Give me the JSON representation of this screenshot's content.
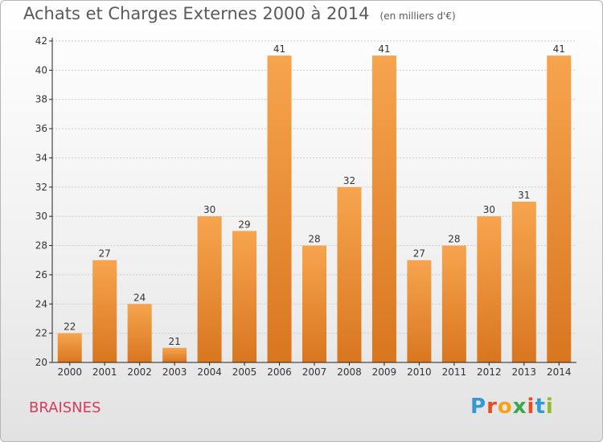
{
  "chart_data": {
    "type": "bar",
    "title": "Achats et Charges Externes 2000 à 2014",
    "subtitle": "(en milliers d'€)",
    "categories": [
      "2000",
      "2001",
      "2002",
      "2003",
      "2004",
      "2005",
      "2006",
      "2007",
      "2008",
      "2009",
      "2010",
      "2011",
      "2012",
      "2013",
      "2014"
    ],
    "values": [
      22,
      27,
      24,
      21,
      30,
      29,
      41,
      28,
      32,
      41,
      27,
      28,
      30,
      31,
      41
    ],
    "data_labels": [
      "22",
      "27",
      "24",
      "21",
      "30",
      "29",
      "41",
      "28",
      "32",
      "41",
      "27",
      "28",
      "30",
      "31",
      "41"
    ],
    "ylim": [
      20,
      42
    ],
    "yticks": [
      "20",
      "22",
      "24",
      "26",
      "28",
      "30",
      "32",
      "34",
      "36",
      "38",
      "40",
      "42"
    ],
    "grid": true,
    "colors": {
      "bar_top": "#f7a44e",
      "bar_bottom": "#d97620",
      "grid": "#cccccc",
      "axis": "#222222"
    }
  },
  "commune": "BRAISNES",
  "logo": {
    "letters": [
      "P",
      "r",
      "o",
      "x",
      "i",
      "t",
      "i"
    ],
    "colors": [
      "#2f9ad6",
      "#e94b23",
      "#f7a21b",
      "#3aa84c",
      "#e94b23",
      "#2f9ad6",
      "#8dbb2a"
    ]
  }
}
